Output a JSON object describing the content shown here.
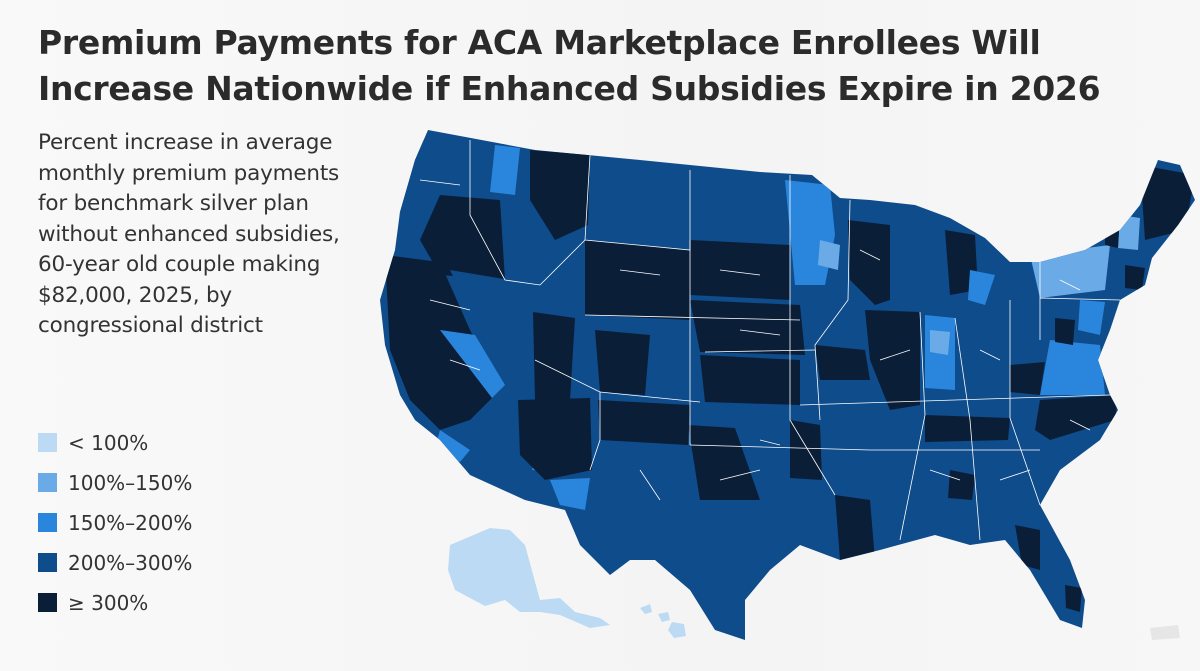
{
  "title": "Premium Payments for ACA Marketplace Enrollees Will Increase Nationwide if Enhanced Subsidies Expire in 2026",
  "subtitle": "Percent increase in average monthly premium payments for benchmark silver plan without enhanced subsidies, 60-year old couple making $82,000, 2025, by congressional district",
  "legend": [
    {
      "label": "< 100%",
      "color": "#bcdaf3"
    },
    {
      "label": "100%–150%",
      "color": "#6aaae6"
    },
    {
      "label": "150%–200%",
      "color": "#2a86dc"
    },
    {
      "label": "200%–300%",
      "color": "#0e4c8c"
    },
    {
      "label": "≥ 300%",
      "color": "#0b1e38"
    }
  ],
  "colors": {
    "lt100": "#bcdaf3",
    "c100_150": "#6aaae6",
    "c150_200": "#2a86dc",
    "c200_300": "#0e4c8c",
    "gte300": "#0b1e38",
    "boundary": "#ffffff",
    "no_data": "#e6e6e6"
  },
  "map_regions": {
    "alaska": "lt100",
    "hawaii": "lt100",
    "puerto_rico": "no_data",
    "lower_48_base": "c200_300"
  }
}
